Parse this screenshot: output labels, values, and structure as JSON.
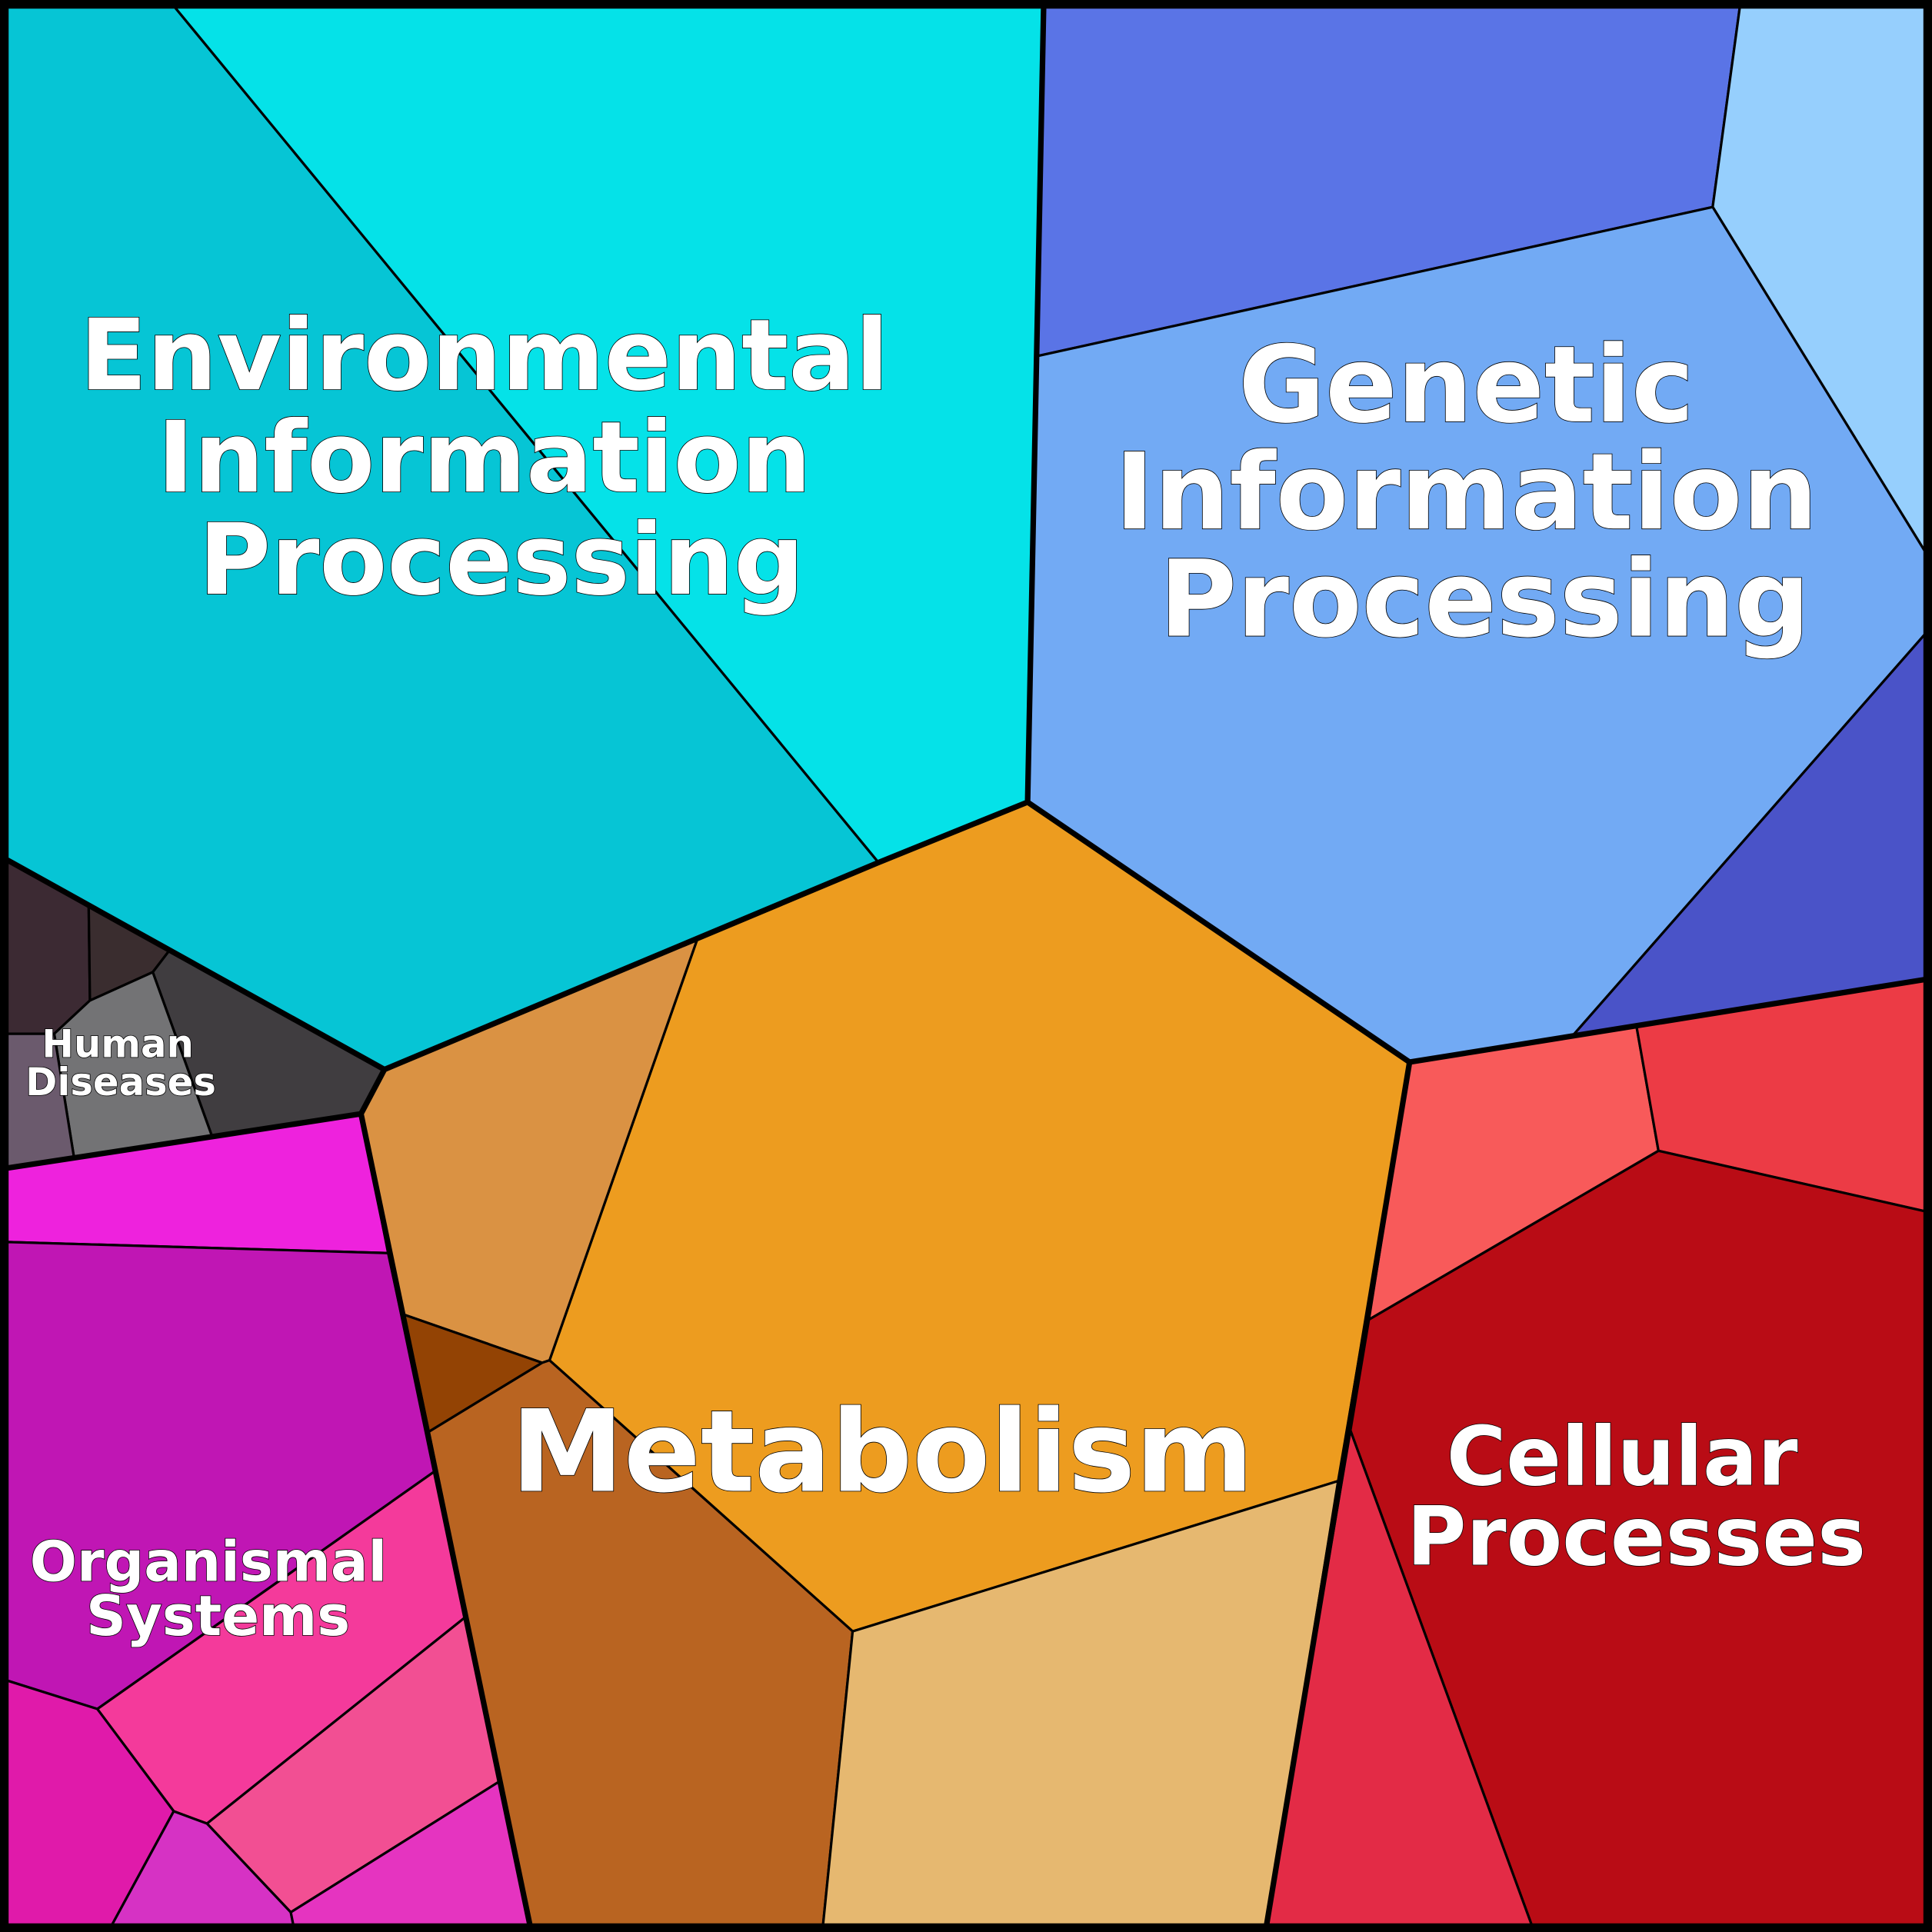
{
  "labels": {
    "environmental": [
      "Environmental",
      "Information",
      "Processing"
    ],
    "genetic": [
      "Genetic",
      "Information",
      "Processing"
    ],
    "metabolism": [
      "Metabolism"
    ],
    "cellular": [
      "Cellular",
      "Processes"
    ],
    "organismal": [
      "Organismal",
      "Systems"
    ],
    "human_diseases": [
      "Human",
      "Diseases"
    ]
  },
  "colors": {
    "environmental": [
      "#06c5d5",
      "#05e2e8"
    ],
    "genetic": [
      "#5a74e6",
      "#96cffd",
      "#72aaf4",
      "#4a53c8"
    ],
    "cellular": [
      "#f85a5a",
      "#ec3b45",
      "#b90c15",
      "#e32b46"
    ],
    "metabolism": [
      "#ed9c1f",
      "#da9243",
      "#934304",
      "#b96421",
      "#e6b870"
    ],
    "human_diseases": [
      "#3c2a33",
      "#3a2d2f",
      "#403d40",
      "#737375",
      "#6b5a6d"
    ],
    "organismal": [
      "#ee22dd",
      "#c016b4",
      "#f43a9b",
      "#f24f93",
      "#e01aaa",
      "#d632c4",
      "#e534c0"
    ]
  }
}
